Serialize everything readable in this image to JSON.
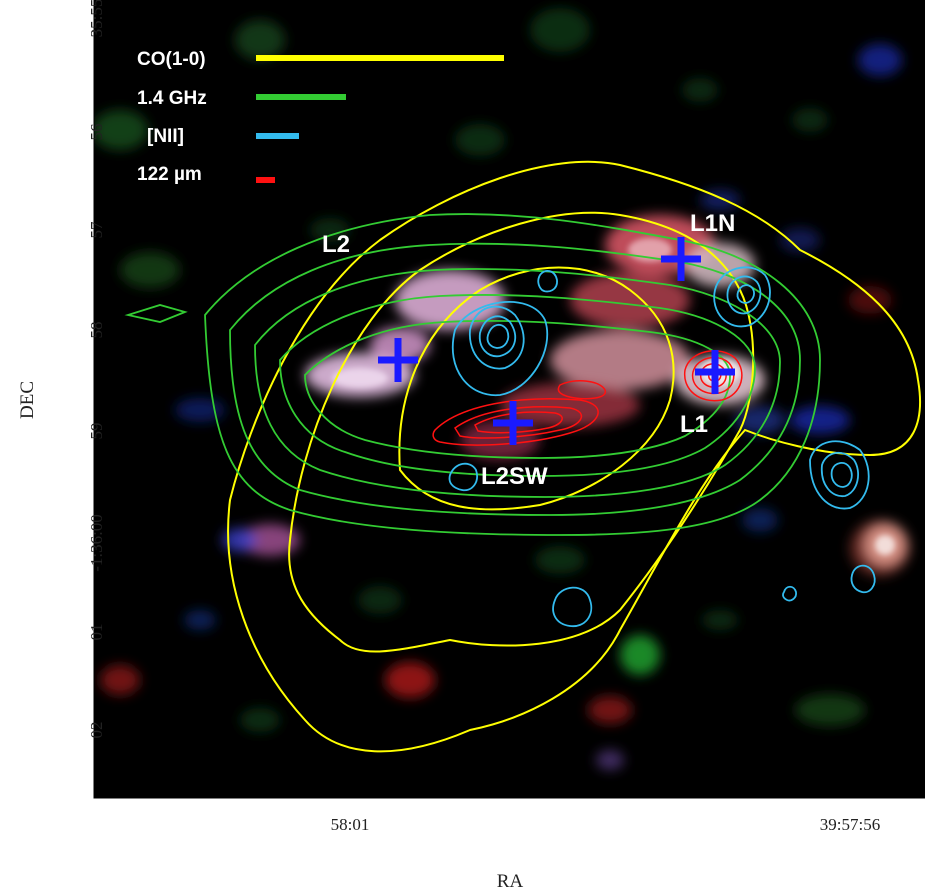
{
  "axes": {
    "x_label": "RA",
    "y_label": "DEC",
    "x_ticks": [
      "58:01",
      "39:57:56"
    ],
    "y_ticks": [
      "35:55",
      "56",
      "57",
      "58",
      "59",
      "-1:36:00",
      "01",
      "02"
    ]
  },
  "legend": [
    {
      "label": "CO(1-0)",
      "color": "#ffff00"
    },
    {
      "label": "1.4 GHz",
      "color": "#33cc33"
    },
    {
      "label": "[NII]",
      "color": "#33bbee"
    },
    {
      "label": "122 µm",
      "color": "#ff1111"
    }
  ],
  "sources": [
    {
      "name": "L2"
    },
    {
      "name": "L1N"
    },
    {
      "name": "L1"
    },
    {
      "name": "L2SW"
    }
  ],
  "colors": {
    "background": "#000000",
    "marker": "#1a1aff",
    "co": "#ffff00",
    "radio": "#33cc33",
    "nii": "#33bbee",
    "fir": "#ff1111"
  }
}
